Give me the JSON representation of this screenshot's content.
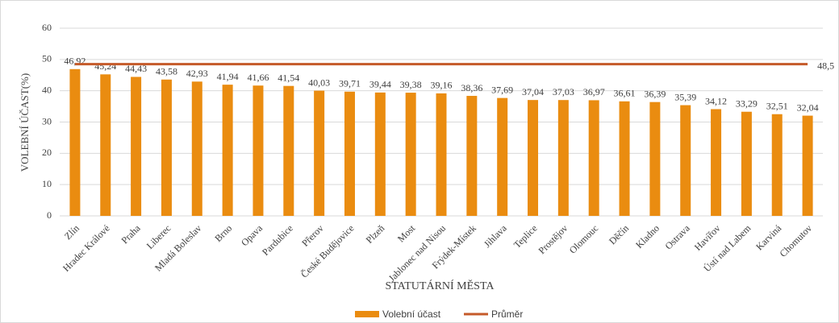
{
  "chart_data": {
    "type": "bar",
    "categories": [
      "Zlín",
      "Hradec Králové",
      "Praha",
      "Liberec",
      "Mladá Boleslav",
      "Brno",
      "Opava",
      "Pardubice",
      "Přerov",
      "České Budějovice",
      "Plzeň",
      "Most",
      "Jablonec nad Nisou",
      "Frýdek-Místek",
      "Jihlava",
      "Teplice",
      "Prostějov",
      "Olomouc",
      "Děčín",
      "Kladno",
      "Ostrava",
      "Havířov",
      "Ústí nad Labem",
      "Karviná",
      "Chomutov"
    ],
    "series": [
      {
        "name": "Volební účast",
        "type": "bar",
        "color": "#ea8c10",
        "values": [
          46.92,
          45.24,
          44.43,
          43.58,
          42.93,
          41.94,
          41.66,
          41.54,
          40.03,
          39.71,
          39.44,
          39.38,
          39.16,
          38.36,
          37.69,
          37.04,
          37.03,
          36.97,
          36.61,
          36.39,
          35.39,
          34.12,
          33.29,
          32.51,
          32.04
        ],
        "value_labels": [
          "46,92",
          "45,24",
          "44,43",
          "43,58",
          "42,93",
          "41,94",
          "41,66",
          "41,54",
          "40,03",
          "39,71",
          "39,44",
          "39,38",
          "39,16",
          "38,36",
          "37,69",
          "37,04",
          "37,03",
          "36,97",
          "36,61",
          "36,39",
          "35,39",
          "34,12",
          "33,29",
          "32,51",
          "32,04"
        ]
      },
      {
        "name": "Průměr",
        "type": "line",
        "color": "#c55a29",
        "value": 48.5,
        "value_label": "48,5"
      }
    ],
    "xlabel": "STATUTÁRNÍ MĚSTA",
    "ylabel": "VOLEBNÍ ÚČAST(%)",
    "ylim": [
      0,
      60
    ],
    "yticks": [
      0,
      10,
      20,
      30,
      40,
      50,
      60
    ],
    "grid": true,
    "legend": "bottom"
  }
}
